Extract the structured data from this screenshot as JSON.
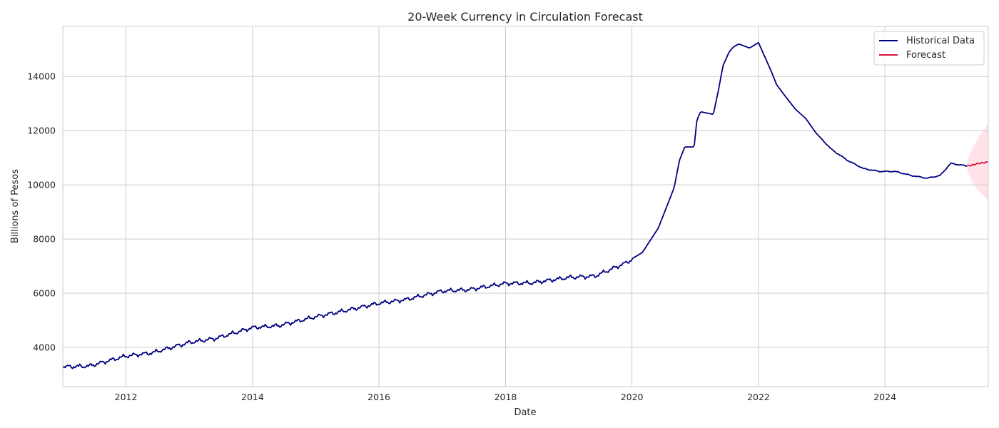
{
  "chart_data": {
    "type": "line",
    "title": "20-Week Currency in Circulation Forecast",
    "xlabel": "Date",
    "ylabel": "Billions of Pesos",
    "xlim": [
      "2011-01-01",
      "2025-08-20"
    ],
    "ylim": [
      2550,
      15850
    ],
    "x_ticks": [
      "2012",
      "2014",
      "2016",
      "2018",
      "2020",
      "2022",
      "2024"
    ],
    "y_ticks": [
      4000,
      6000,
      8000,
      10000,
      12000,
      14000
    ],
    "grid": true,
    "legend": "top-right",
    "series": [
      {
        "name": "Historical Data",
        "color": "#000080",
        "weekly_jitter": true,
        "points": [
          [
            "2011-01-01",
            3300
          ],
          [
            "2011-06-01",
            3330
          ],
          [
            "2012-01-01",
            3700
          ],
          [
            "2012-06-01",
            3820
          ],
          [
            "2013-01-01",
            4200
          ],
          [
            "2013-06-01",
            4350
          ],
          [
            "2014-01-01",
            4750
          ],
          [
            "2014-06-01",
            4820
          ],
          [
            "2015-01-01",
            5150
          ],
          [
            "2015-06-01",
            5350
          ],
          [
            "2016-01-01",
            5650
          ],
          [
            "2016-06-01",
            5780
          ],
          [
            "2017-01-01",
            6100
          ],
          [
            "2017-06-01",
            6150
          ],
          [
            "2018-01-01",
            6380
          ],
          [
            "2018-06-01",
            6400
          ],
          [
            "2019-01-01",
            6600
          ],
          [
            "2019-06-01",
            6650
          ],
          [
            "2019-12-01",
            7150
          ],
          [
            "2020-03-01",
            7500
          ],
          [
            "2020-06-01",
            8400
          ],
          [
            "2020-09-01",
            9900
          ],
          [
            "2020-10-01",
            10900
          ],
          [
            "2020-11-01",
            11400
          ],
          [
            "2020-12-25",
            11400
          ],
          [
            "2021-01-10",
            12400
          ],
          [
            "2021-02-01",
            12700
          ],
          [
            "2021-04-15",
            12600
          ],
          [
            "2021-05-15",
            13500
          ],
          [
            "2021-06-10",
            14400
          ],
          [
            "2021-07-15",
            14900
          ],
          [
            "2021-08-10",
            15100
          ],
          [
            "2021-09-10",
            15200
          ],
          [
            "2021-11-10",
            15050
          ],
          [
            "2022-01-01",
            15250
          ],
          [
            "2022-02-01",
            14800
          ],
          [
            "2022-03-15",
            14200
          ],
          [
            "2022-04-15",
            13700
          ],
          [
            "2022-06-01",
            13300
          ],
          [
            "2022-08-01",
            12800
          ],
          [
            "2022-10-01",
            12450
          ],
          [
            "2022-12-01",
            11900
          ],
          [
            "2023-03-01",
            11300
          ],
          [
            "2023-06-01",
            10900
          ],
          [
            "2023-09-01",
            10600
          ],
          [
            "2023-12-01",
            10500
          ],
          [
            "2024-03-01",
            10500
          ],
          [
            "2024-06-01",
            10350
          ],
          [
            "2024-09-01",
            10250
          ],
          [
            "2024-11-15",
            10350
          ],
          [
            "2025-01-15",
            10800
          ],
          [
            "2025-03-01",
            10750
          ],
          [
            "2025-04-20",
            10700
          ]
        ]
      },
      {
        "name": "Forecast",
        "color": "#dc143c",
        "band_color": "#ffc0cb",
        "points": [
          [
            "2025-04-20",
            10700
          ],
          [
            "2025-05-15",
            10720
          ],
          [
            "2025-06-15",
            10780
          ],
          [
            "2025-07-15",
            10810
          ],
          [
            "2025-08-20",
            10840
          ]
        ],
        "band_lower": [
          [
            "2025-04-20",
            10550
          ],
          [
            "2025-05-15",
            10150
          ],
          [
            "2025-06-15",
            9850
          ],
          [
            "2025-07-15",
            9650
          ],
          [
            "2025-08-20",
            9420
          ]
        ],
        "band_upper": [
          [
            "2025-04-20",
            10850
          ],
          [
            "2025-05-15",
            11300
          ],
          [
            "2025-06-15",
            11650
          ],
          [
            "2025-07-15",
            11950
          ],
          [
            "2025-08-20",
            12250
          ]
        ]
      }
    ]
  }
}
